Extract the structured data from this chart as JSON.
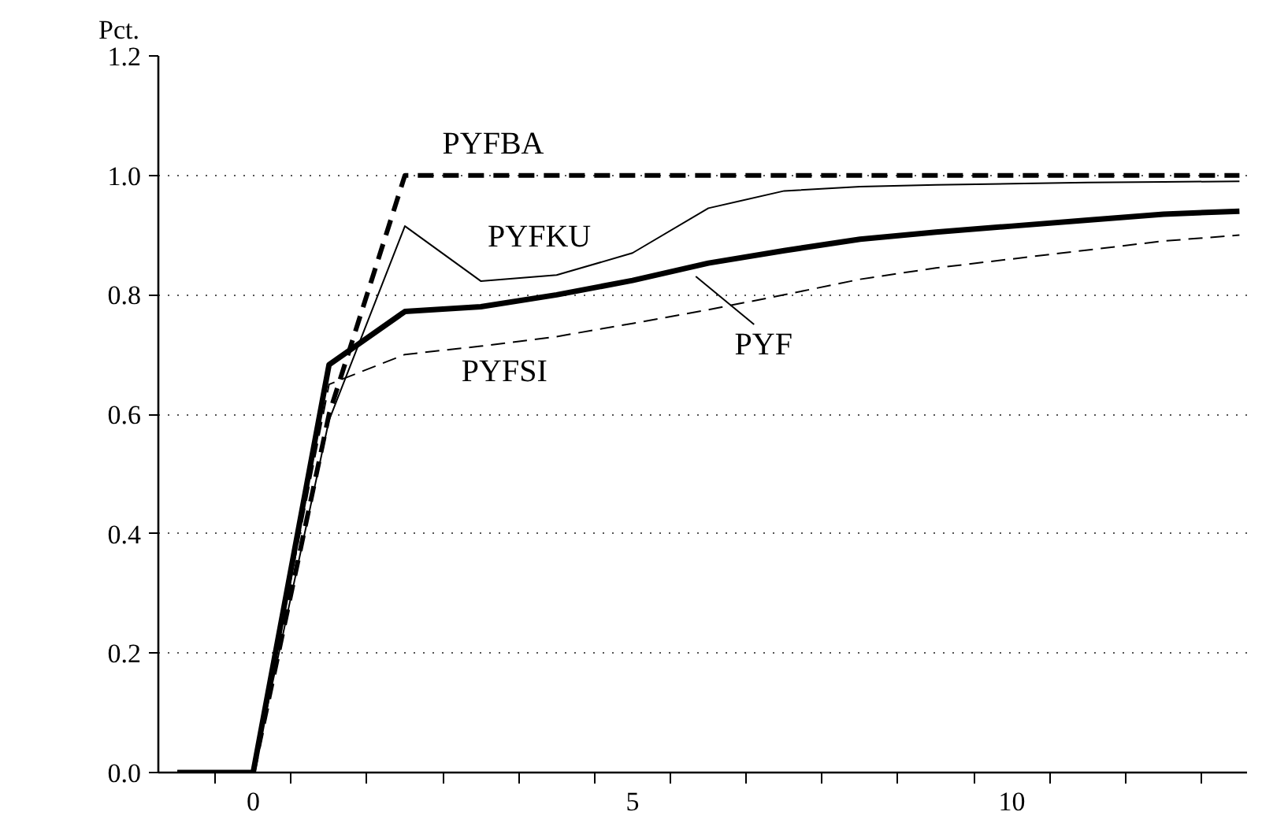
{
  "chart_data": {
    "type": "line",
    "ylabel": "Pct.",
    "x": [
      -1,
      0,
      1,
      2,
      3,
      4,
      5,
      6,
      7,
      8,
      9,
      10,
      11,
      12,
      13
    ],
    "series": [
      {
        "name": "PYFBA",
        "color": "#000000",
        "line_style": "dashed",
        "values": [
          0,
          0,
          0.6,
          1.0,
          1.0,
          1.0,
          1.0,
          1.0,
          1.0,
          1.0,
          1.0,
          1.0,
          1.0,
          1.0,
          1.0
        ]
      },
      {
        "name": "PYFKU",
        "color": "#000000",
        "line_style": "solid",
        "values": [
          0,
          0,
          0.59,
          0.915,
          0.823,
          0.833,
          0.87,
          0.945,
          0.974,
          0.981,
          0.984,
          0.986,
          0.988,
          0.989,
          0.99
        ]
      },
      {
        "name": "PYF",
        "color": "#000000",
        "line_style": "solid",
        "values": [
          0,
          0,
          0.683,
          0.772,
          0.78,
          0.8,
          0.824,
          0.853,
          0.874,
          0.893,
          0.905,
          0.915,
          0.925,
          0.935,
          0.94
        ]
      },
      {
        "name": "PYFSI",
        "color": "#000000",
        "line_style": "dashed",
        "values": [
          0,
          0,
          0.65,
          0.7,
          0.714,
          0.73,
          0.752,
          0.775,
          0.8,
          0.826,
          0.845,
          0.86,
          0.875,
          0.89,
          0.9
        ]
      }
    ],
    "xlim": [
      -1.25,
      13.1
    ],
    "xticks": [
      {
        "value": 0,
        "label": "0"
      },
      {
        "value": 5,
        "label": "5"
      },
      {
        "value": 10,
        "label": "10"
      },
      {
        "value": -0.5,
        "label": null
      },
      {
        "value": 0.5,
        "label": null
      },
      {
        "value": 1.5,
        "label": null
      },
      {
        "value": 2.5,
        "label": null
      },
      {
        "value": 3.5,
        "label": null
      },
      {
        "value": 4.5,
        "label": null
      },
      {
        "value": 5.5,
        "label": null
      },
      {
        "value": 6.5,
        "label": null
      },
      {
        "value": 7.5,
        "label": null
      },
      {
        "value": 8.5,
        "label": null
      },
      {
        "value": 9.5,
        "label": null
      },
      {
        "value": 10.5,
        "label": null
      },
      {
        "value": 11.5,
        "label": null
      },
      {
        "value": 12.5,
        "label": null
      }
    ],
    "ylim": [
      0,
      1.2
    ],
    "yticks": [
      {
        "value": 0,
        "label": "0.0"
      },
      {
        "value": 0.2,
        "label": "0.2"
      },
      {
        "value": 0.4,
        "label": "0.4"
      },
      {
        "value": 0.6,
        "label": "0.6"
      },
      {
        "value": 0.8,
        "label": "0.8"
      },
      {
        "value": 1.0,
        "label": "1.0"
      },
      {
        "value": 1.2,
        "label": "1.2"
      }
    ],
    "grid": "y",
    "marker": "none"
  }
}
